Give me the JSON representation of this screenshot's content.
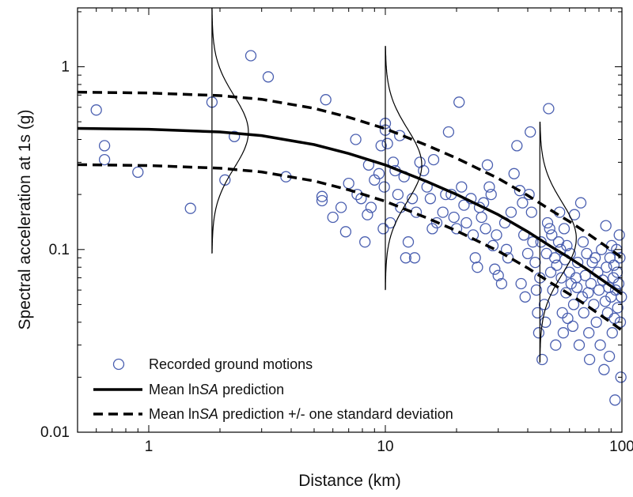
{
  "chart_data": {
    "type": "scatter",
    "xlabel": "Distance (km)",
    "ylabel": "Spectral acceleration at 1s (g)",
    "x_scale": "log",
    "y_scale": "log",
    "xlim": [
      0.5,
      100
    ],
    "ylim": [
      0.01,
      2.1
    ],
    "x_ticks": [
      {
        "value": 1,
        "label": "1"
      },
      {
        "value": 10,
        "label": "10"
      },
      {
        "value": 100,
        "label": "100"
      }
    ],
    "y_ticks": [
      {
        "value": 0.01,
        "label": "0.01"
      },
      {
        "value": 0.1,
        "label": "0.1"
      },
      {
        "value": 1,
        "label": "1"
      }
    ],
    "grid": false,
    "legend_position": "bottom-left",
    "colors": {
      "points": "#4a5fb0",
      "lines": "#000000"
    },
    "legend": [
      {
        "type": "marker",
        "prefix": "Recorded ground motions",
        "italic": "",
        "suffix": ""
      },
      {
        "type": "solid",
        "prefix": "Mean ln",
        "italic": "SA",
        "suffix": " prediction"
      },
      {
        "type": "dashed",
        "prefix": "Mean ln",
        "italic": "SA",
        "suffix": " prediction +/- one standard deviation"
      }
    ],
    "median_curve": {
      "x": [
        0.5,
        1,
        2,
        3,
        5,
        7,
        10,
        15,
        20,
        30,
        40,
        50,
        60,
        70,
        80,
        90,
        100
      ],
      "y": [
        0.46,
        0.455,
        0.44,
        0.42,
        0.375,
        0.335,
        0.29,
        0.235,
        0.2,
        0.155,
        0.125,
        0.104,
        0.09,
        0.079,
        0.07,
        0.063,
        0.057
      ]
    },
    "sigma_factor": 1.58,
    "distributions": [
      {
        "x": 1.85,
        "median": 0.44,
        "y_min": 0.095,
        "y_max": 2.1
      },
      {
        "x": 10,
        "median": 0.29,
        "y_min": 0.06,
        "y_max": 1.3
      },
      {
        "x": 45,
        "median": 0.115,
        "y_min": 0.024,
        "y_max": 0.5
      }
    ],
    "points": [
      [
        0.6,
        0.58
      ],
      [
        0.65,
        0.37
      ],
      [
        0.65,
        0.31
      ],
      [
        0.9,
        0.265
      ],
      [
        1.5,
        0.168
      ],
      [
        1.85,
        0.64
      ],
      [
        2.1,
        0.24
      ],
      [
        2.3,
        0.415
      ],
      [
        2.7,
        1.15
      ],
      [
        3.2,
        0.88
      ],
      [
        3.8,
        0.25
      ],
      [
        5.4,
        0.195
      ],
      [
        5.6,
        0.66
      ],
      [
        5.4,
        0.185
      ],
      [
        6,
        0.15
      ],
      [
        6.5,
        0.17
      ],
      [
        6.8,
        0.125
      ],
      [
        7,
        0.23
      ],
      [
        7.5,
        0.4
      ],
      [
        7.6,
        0.2
      ],
      [
        7.9,
        0.19
      ],
      [
        8.2,
        0.11
      ],
      [
        8.5,
        0.29
      ],
      [
        8.4,
        0.155
      ],
      [
        8.7,
        0.17
      ],
      [
        9,
        0.24
      ],
      [
        9.4,
        0.26
      ],
      [
        9.6,
        0.37
      ],
      [
        9.8,
        0.13
      ],
      [
        10,
        0.49
      ],
      [
        10.2,
        0.38
      ],
      [
        10,
        0.45
      ],
      [
        9.9,
        0.22
      ],
      [
        10.5,
        0.14
      ],
      [
        10.8,
        0.3
      ],
      [
        11,
        0.27
      ],
      [
        11.3,
        0.2
      ],
      [
        11.5,
        0.42
      ],
      [
        11.6,
        0.17
      ],
      [
        12,
        0.25
      ],
      [
        12.2,
        0.09
      ],
      [
        12.5,
        0.11
      ],
      [
        13,
        0.19
      ],
      [
        13.5,
        0.16
      ],
      [
        13.3,
        0.09
      ],
      [
        14,
        0.3
      ],
      [
        14.5,
        0.27
      ],
      [
        15,
        0.22
      ],
      [
        15.5,
        0.19
      ],
      [
        15.8,
        0.13
      ],
      [
        16,
        0.31
      ],
      [
        16.5,
        0.14
      ],
      [
        17.5,
        0.16
      ],
      [
        18,
        0.2
      ],
      [
        18.5,
        0.44
      ],
      [
        19,
        0.2
      ],
      [
        19.5,
        0.15
      ],
      [
        20,
        0.13
      ],
      [
        20.5,
        0.64
      ],
      [
        21,
        0.22
      ],
      [
        21.5,
        0.175
      ],
      [
        22,
        0.14
      ],
      [
        23,
        0.19
      ],
      [
        23.5,
        0.12
      ],
      [
        24,
        0.09
      ],
      [
        24.5,
        0.08
      ],
      [
        25,
        0.17
      ],
      [
        25.5,
        0.15
      ],
      [
        26,
        0.18
      ],
      [
        26.5,
        0.13
      ],
      [
        27,
        0.29
      ],
      [
        27.5,
        0.22
      ],
      [
        28,
        0.2
      ],
      [
        28.5,
        0.105
      ],
      [
        29,
        0.078
      ],
      [
        29.5,
        0.12
      ],
      [
        30,
        0.072
      ],
      [
        31,
        0.065
      ],
      [
        32,
        0.14
      ],
      [
        32.5,
        0.1
      ],
      [
        33,
        0.09
      ],
      [
        34,
        0.16
      ],
      [
        35,
        0.26
      ],
      [
        36,
        0.37
      ],
      [
        37,
        0.21
      ],
      [
        37.5,
        0.065
      ],
      [
        38,
        0.18
      ],
      [
        38.5,
        0.12
      ],
      [
        39,
        0.055
      ],
      [
        40,
        0.095
      ],
      [
        40.5,
        0.2
      ],
      [
        41,
        0.44
      ],
      [
        41.5,
        0.16
      ],
      [
        42,
        0.11
      ],
      [
        43,
        0.085
      ],
      [
        43.5,
        0.06
      ],
      [
        44,
        0.045
      ],
      [
        44.5,
        0.035
      ],
      [
        45,
        0.07
      ],
      [
        45.5,
        0.11
      ],
      [
        46,
        0.025
      ],
      [
        47,
        0.05
      ],
      [
        47.5,
        0.04
      ],
      [
        48,
        0.095
      ],
      [
        48.5,
        0.14
      ],
      [
        49,
        0.59
      ],
      [
        49.5,
        0.13
      ],
      [
        50,
        0.075
      ],
      [
        50.5,
        0.12
      ],
      [
        51,
        0.06
      ],
      [
        52,
        0.09
      ],
      [
        52.5,
        0.03
      ],
      [
        53,
        0.082
      ],
      [
        54,
        0.11
      ],
      [
        54.5,
        0.16
      ],
      [
        55,
        0.1
      ],
      [
        55.5,
        0.07
      ],
      [
        56,
        0.045
      ],
      [
        56.5,
        0.035
      ],
      [
        57,
        0.13
      ],
      [
        57.5,
        0.088
      ],
      [
        58,
        0.058
      ],
      [
        58.5,
        0.105
      ],
      [
        59,
        0.042
      ],
      [
        60,
        0.075
      ],
      [
        60.5,
        0.095
      ],
      [
        61,
        0.065
      ],
      [
        62,
        0.038
      ],
      [
        62.5,
        0.05
      ],
      [
        63,
        0.155
      ],
      [
        64,
        0.07
      ],
      [
        64.5,
        0.062
      ],
      [
        65,
        0.085
      ],
      [
        66,
        0.03
      ],
      [
        67,
        0.18
      ],
      [
        68,
        0.055
      ],
      [
        68.5,
        0.11
      ],
      [
        69,
        0.045
      ],
      [
        70,
        0.072
      ],
      [
        71,
        0.095
      ],
      [
        72,
        0.058
      ],
      [
        72.5,
        0.035
      ],
      [
        73,
        0.025
      ],
      [
        74,
        0.065
      ],
      [
        75,
        0.085
      ],
      [
        76,
        0.05
      ],
      [
        77,
        0.09
      ],
      [
        78,
        0.04
      ],
      [
        79,
        0.075
      ],
      [
        80,
        0.06
      ],
      [
        81,
        0.03
      ],
      [
        82,
        0.1
      ],
      [
        83,
        0.068
      ],
      [
        84,
        0.022
      ],
      [
        85,
        0.052
      ],
      [
        85.5,
        0.135
      ],
      [
        86,
        0.08
      ],
      [
        87,
        0.045
      ],
      [
        88,
        0.062
      ],
      [
        88.5,
        0.026
      ],
      [
        89,
        0.09
      ],
      [
        90,
        0.055
      ],
      [
        90.5,
        0.105
      ],
      [
        91,
        0.035
      ],
      [
        92,
        0.07
      ],
      [
        92.5,
        0.082
      ],
      [
        93,
        0.042
      ],
      [
        93.5,
        0.015
      ],
      [
        94,
        0.06
      ],
      [
        95,
        0.1
      ],
      [
        95.5,
        0.075
      ],
      [
        96,
        0.048
      ],
      [
        97,
        0.065
      ],
      [
        97.5,
        0.12
      ],
      [
        98,
        0.09
      ],
      [
        98.5,
        0.04
      ],
      [
        99,
        0.02
      ],
      [
        99.5,
        0.055
      ]
    ]
  }
}
